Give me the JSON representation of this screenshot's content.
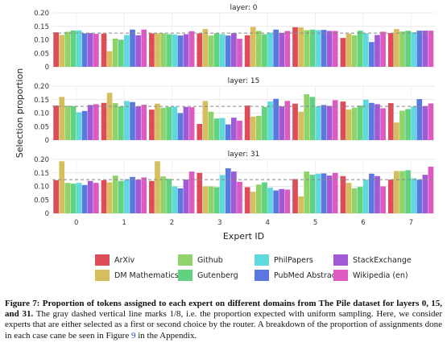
{
  "chart_data": {
    "type": "bar",
    "ylabel": "Selection proportion",
    "xlabel": "Expert ID",
    "categories": [
      "0",
      "1",
      "2",
      "3",
      "4",
      "5",
      "6",
      "7"
    ],
    "ylim": [
      0,
      0.2
    ],
    "yticks": [
      "0",
      "0.05",
      "0.10",
      "0.15",
      "0.20"
    ],
    "reference_line": 0.125,
    "grid": true,
    "legend_position": "bottom",
    "domains": [
      "ArXiv",
      "DM Mathematics",
      "Github",
      "Gutenberg",
      "PhilPapers",
      "PubMed Abstracts",
      "StackExchange",
      "Wikipedia (en)"
    ],
    "colors": [
      "#dc4d59",
      "#d6be5e",
      "#8fd36a",
      "#61d380",
      "#5fd9dc",
      "#5a78e0",
      "#a05ad6",
      "#dd5ac1"
    ],
    "panels": [
      {
        "title": "layer: 0",
        "values": [
          [
            0.128,
            0.118,
            0.13,
            0.135,
            0.135,
            0.124,
            0.125,
            0.122
          ],
          [
            0.123,
            0.058,
            0.105,
            0.1,
            0.118,
            0.138,
            0.117,
            0.138
          ],
          [
            0.124,
            0.124,
            0.124,
            0.121,
            0.12,
            0.116,
            0.121,
            0.132
          ],
          [
            0.124,
            0.14,
            0.116,
            0.124,
            0.121,
            0.116,
            0.125,
            0.104
          ],
          [
            0.117,
            0.148,
            0.133,
            0.121,
            0.127,
            0.138,
            0.126,
            0.133
          ],
          [
            0.147,
            0.146,
            0.136,
            0.138,
            0.136,
            0.137,
            0.133,
            0.133
          ],
          [
            0.107,
            0.123,
            0.117,
            0.134,
            0.124,
            0.092,
            0.118,
            0.13
          ],
          [
            0.125,
            0.14,
            0.131,
            0.134,
            0.128,
            0.134,
            0.134,
            0.134
          ]
        ]
      },
      {
        "title": "layer: 15",
        "values": [
          [
            0.128,
            0.16,
            0.127,
            0.126,
            0.103,
            0.108,
            0.13,
            0.133
          ],
          [
            0.138,
            0.175,
            0.137,
            0.125,
            0.145,
            0.141,
            0.125,
            0.131
          ],
          [
            0.113,
            0.135,
            0.12,
            0.123,
            0.124,
            0.1,
            0.123,
            0.122
          ],
          [
            0.06,
            0.145,
            0.105,
            0.08,
            0.082,
            0.058,
            0.083,
            0.072
          ],
          [
            0.128,
            0.087,
            0.09,
            0.123,
            0.143,
            0.153,
            0.125,
            0.145
          ],
          [
            0.135,
            0.105,
            0.17,
            0.16,
            0.125,
            0.13,
            0.127,
            0.148
          ],
          [
            0.143,
            0.113,
            0.12,
            0.128,
            0.15,
            0.138,
            0.133,
            0.118
          ],
          [
            0.137,
            0.065,
            0.109,
            0.115,
            0.124,
            0.152,
            0.126,
            0.136
          ]
        ]
      },
      {
        "title": "layer: 31",
        "values": [
          [
            0.123,
            0.193,
            0.113,
            0.11,
            0.113,
            0.105,
            0.12,
            0.113
          ],
          [
            0.123,
            0.115,
            0.14,
            0.12,
            0.126,
            0.135,
            0.125,
            0.133
          ],
          [
            0.12,
            0.193,
            0.137,
            0.128,
            0.1,
            0.093,
            0.125,
            0.155
          ],
          [
            0.15,
            0.1,
            0.1,
            0.097,
            0.142,
            0.167,
            0.155,
            0.117
          ],
          [
            0.097,
            0.08,
            0.107,
            0.115,
            0.095,
            0.085,
            0.09,
            0.088
          ],
          [
            0.127,
            0.063,
            0.155,
            0.143,
            0.147,
            0.148,
            0.14,
            0.15
          ],
          [
            0.138,
            0.113,
            0.093,
            0.098,
            0.125,
            0.147,
            0.138,
            0.1
          ],
          [
            0.125,
            0.157,
            0.157,
            0.16,
            0.13,
            0.125,
            0.143,
            0.173
          ]
        ]
      }
    ]
  },
  "caption": {
    "label": "Figure 7:",
    "bold_text": "Proportion of tokens assigned to each expert on different domains from The Pile dataset for layers 0, 15, and 31.",
    "text_before_ref": "The gray dashed vertical line marks 1/8, i.e. the proportion expected with uniform sampling. Here, we consider experts that are either selected as a first or second choice by the router. A breakdown of the proportion of assignments done in each case cane be seen in Figure",
    "ref": "9",
    "text_after_ref": "in the Appendix."
  }
}
